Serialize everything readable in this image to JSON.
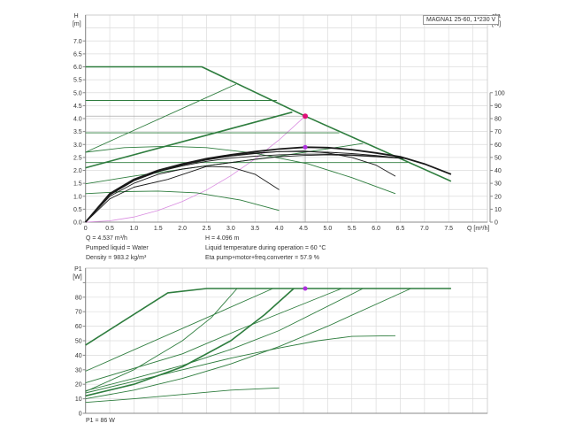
{
  "colors": {
    "pump": "#2e7d3e",
    "eta": "#1a1a1a",
    "system": "#d98be0",
    "op_point": "#e0107a",
    "eta_point": "#b030e0",
    "grid": "#dcdcdc",
    "axis": "#888888"
  },
  "legend": "MAGNA1 25-60, 1*230 V",
  "info": {
    "q": "Q = 4.537 m³/h",
    "liquid": "Pumped liquid = Water",
    "density": "Density = 983.2 kg/m³",
    "h": "H = 4.096 m",
    "temp": "Liquid temperature during operation = 60 °C",
    "eta": "Eta pump+motor+freq.converter = 57.9 %",
    "p1": "P1 = 86 W"
  },
  "chart_data": [
    {
      "type": "line",
      "title": "",
      "xlabel": "Q [m³/h]",
      "ylabel_top": "H",
      "ylabel_unit": "[m]",
      "y2label_top": "eta",
      "y2label_unit": "[%]",
      "xlim": [
        0,
        8.3
      ],
      "ylim": [
        0,
        8
      ],
      "y2lim": [
        0,
        100
      ],
      "y2_axis_span_h": [
        0,
        5
      ],
      "x_ticks": [
        "0",
        "0.5",
        "1.0",
        "1.5",
        "2.0",
        "2.5",
        "3.0",
        "3.5",
        "4.0",
        "4.5",
        "5.0",
        "5.5",
        "6.0",
        "6.5",
        "7.0",
        "7.5"
      ],
      "y_ticks": [
        "0.0",
        "0.5",
        "1.0",
        "1.5",
        "2.0",
        "2.5",
        "3.0",
        "3.5",
        "4.0",
        "4.5",
        "5.0",
        "5.5",
        "6.0",
        "6.5",
        "7.0"
      ],
      "y2_ticks": [
        "0",
        "10",
        "20",
        "30",
        "40",
        "50",
        "60",
        "70",
        "80",
        "90",
        "100"
      ],
      "grid": true,
      "legend_position": "top-right",
      "head_curves": [
        {
          "name": "max-curve",
          "points": [
            [
              0,
              6.0
            ],
            [
              2.4,
              6.0
            ],
            [
              4.537,
              4.096
            ],
            [
              7.55,
              1.58
            ]
          ],
          "bold": true
        },
        {
          "name": "prop-pressure-1",
          "points": [
            [
              0,
              2.7
            ],
            [
              3.11,
              5.33
            ]
          ]
        },
        {
          "name": "const-pressure-1",
          "points": [
            [
              0,
              4.7
            ],
            [
              3.95,
              4.7
            ]
          ]
        },
        {
          "name": "prop-pressure-2",
          "points": [
            [
              0,
              2.1
            ],
            [
              4.27,
              4.25
            ]
          ],
          "bold": true
        },
        {
          "name": "const-pressure-2",
          "points": [
            [
              0,
              3.45
            ],
            [
              5.24,
              3.45
            ]
          ]
        },
        {
          "name": "const-curve-2",
          "points": [
            [
              0,
              2.7
            ],
            [
              0.8,
              2.88
            ],
            [
              1.7,
              2.93
            ],
            [
              2.5,
              2.88
            ],
            [
              3.5,
              2.66
            ],
            [
              4.6,
              2.25
            ],
            [
              5.5,
              1.72
            ],
            [
              6.4,
              1.1
            ]
          ]
        },
        {
          "name": "prop-pressure-3",
          "points": [
            [
              0,
              1.48
            ],
            [
              1,
              1.78
            ],
            [
              2.4,
              2.15
            ],
            [
              4,
              2.55
            ],
            [
              5.73,
              3.04
            ]
          ]
        },
        {
          "name": "const-pressure-3",
          "points": [
            [
              0,
              2.3
            ],
            [
              6.65,
              2.3
            ]
          ]
        },
        {
          "name": "const-curve-1",
          "points": [
            [
              0,
              1.1
            ],
            [
              0.8,
              1.18
            ],
            [
              1.5,
              1.2
            ],
            [
              2.3,
              1.13
            ],
            [
              3.2,
              0.85
            ],
            [
              4.0,
              0.45
            ]
          ]
        }
      ],
      "eta_curves": [
        {
          "name": "eta-max",
          "points": [
            [
              0,
              0
            ],
            [
              0.5,
              22
            ],
            [
              1,
              33
            ],
            [
              1.5,
              40
            ],
            [
              2,
              45
            ],
            [
              2.5,
              49
            ],
            [
              3,
              52
            ],
            [
              3.5,
              54.5
            ],
            [
              4,
              56.5
            ],
            [
              4.537,
              57.9
            ],
            [
              5,
              57.6
            ],
            [
              5.5,
              56
            ],
            [
              6,
              53.5
            ],
            [
              6.5,
              50.5
            ],
            [
              7,
              45
            ],
            [
              7.55,
              37
            ]
          ],
          "bold": true
        },
        {
          "name": "eta-2",
          "points": [
            [
              0,
              0
            ],
            [
              0.5,
              21
            ],
            [
              1,
              32
            ],
            [
              1.5,
              39
            ],
            [
              2,
              44
            ],
            [
              2.5,
              48
            ],
            [
              3,
              51
            ],
            [
              3.5,
              53
            ],
            [
              4,
              54.5
            ],
            [
              4.5,
              55
            ],
            [
              5,
              53.5
            ],
            [
              5.5,
              50
            ],
            [
              6,
              44
            ],
            [
              6.4,
              35.5
            ]
          ]
        },
        {
          "name": "eta-3",
          "points": [
            [
              0,
              0
            ],
            [
              0.5,
              21.5
            ],
            [
              1,
              32.5
            ],
            [
              1.5,
              39.5
            ],
            [
              2,
              44.5
            ],
            [
              2.5,
              48.5
            ],
            [
              3,
              51.5
            ],
            [
              3.5,
              53.5
            ],
            [
              4,
              54.5
            ],
            [
              4.5,
              54.5
            ],
            [
              5,
              54
            ],
            [
              5.5,
              53
            ],
            [
              6,
              51.5
            ],
            [
              6.65,
              49
            ]
          ]
        },
        {
          "name": "eta-4",
          "points": [
            [
              0,
              0
            ],
            [
              0.5,
              21
            ],
            [
              1,
              32
            ],
            [
              1.5,
              39
            ],
            [
              2,
              43.5
            ],
            [
              2.5,
              47
            ],
            [
              3,
              49.5
            ],
            [
              3.5,
              51
            ],
            [
              4,
              52
            ],
            [
              4.5,
              52.5
            ],
            [
              5,
              52.5
            ],
            [
              5.5,
              52
            ],
            [
              6,
              51
            ],
            [
              6.65,
              49
            ]
          ]
        },
        {
          "name": "eta-5",
          "points": [
            [
              0,
              0
            ],
            [
              0.5,
              20
            ],
            [
              1,
              30
            ],
            [
              1.5,
              37
            ],
            [
              2,
              41
            ],
            [
              2.5,
              43.5
            ],
            [
              3,
              46
            ],
            [
              3.5,
              48.5
            ],
            [
              4,
              50.5
            ],
            [
              4.5,
              51.5
            ],
            [
              5,
              52
            ],
            [
              5.5,
              51.5
            ],
            [
              6,
              50.5
            ],
            [
              6.65,
              49
            ]
          ]
        },
        {
          "name": "eta-6",
          "points": [
            [
              0,
              0
            ],
            [
              0.5,
              18
            ],
            [
              1,
              27
            ],
            [
              1.7,
              33
            ],
            [
              2.5,
              43
            ],
            [
              3,
              42.5
            ],
            [
              3.5,
              37
            ],
            [
              4,
              25
            ]
          ]
        }
      ],
      "system_curve": {
        "name": "system-curve",
        "points": [
          [
            0,
            0
          ],
          [
            0.5,
            0.05
          ],
          [
            1,
            0.2
          ],
          [
            1.5,
            0.45
          ],
          [
            2,
            0.8
          ],
          [
            2.5,
            1.24
          ],
          [
            3,
            1.79
          ],
          [
            3.5,
            2.44
          ],
          [
            4,
            3.18
          ],
          [
            4.537,
            4.096
          ]
        ]
      },
      "operating_point": {
        "q": 4.537,
        "h": 4.096,
        "eta": 57.9
      }
    },
    {
      "type": "line",
      "title": "",
      "ylabel_top": "P1",
      "ylabel_unit": "[W]",
      "xlim": [
        0,
        8.3
      ],
      "ylim": [
        0,
        100
      ],
      "y_ticks": [
        "0",
        "10",
        "20",
        "30",
        "40",
        "50",
        "60",
        "70",
        "80"
      ],
      "grid": true,
      "power_curves": [
        {
          "name": "p1-max",
          "points": [
            [
              0,
              47
            ],
            [
              1.7,
              83
            ],
            [
              2.5,
              86
            ],
            [
              7.55,
              86
            ]
          ],
          "bold": true
        },
        {
          "name": "p1-a",
          "points": [
            [
              0,
              15
            ],
            [
              1,
              30
            ],
            [
              2,
              50
            ],
            [
              2.6,
              66
            ],
            [
              3.13,
              86
            ]
          ]
        },
        {
          "name": "p1-b",
          "points": [
            [
              0,
              29
            ],
            [
              3.87,
              86
            ]
          ]
        },
        {
          "name": "p1-c",
          "points": [
            [
              0,
              12
            ],
            [
              1,
              20
            ],
            [
              2,
              32
            ],
            [
              3,
              50
            ],
            [
              3.7,
              68
            ],
            [
              4.3,
              86
            ]
          ],
          "bold": true
        },
        {
          "name": "p1-d",
          "points": [
            [
              0,
              21
            ],
            [
              2,
              41
            ],
            [
              3.13,
              57
            ],
            [
              5.29,
              86
            ]
          ]
        },
        {
          "name": "p1-e",
          "points": [
            [
              0,
              15.5
            ],
            [
              1,
              24
            ],
            [
              2,
              33
            ],
            [
              3,
              44
            ],
            [
              4,
              57
            ],
            [
              5.73,
              86
            ]
          ]
        },
        {
          "name": "p1-f",
          "points": [
            [
              0,
              10
            ],
            [
              1,
              16
            ],
            [
              2,
              24
            ],
            [
              3,
              34
            ],
            [
              4,
              46
            ],
            [
              5,
              60
            ],
            [
              6.72,
              86
            ]
          ]
        },
        {
          "name": "p1-g",
          "points": [
            [
              0,
              14
            ],
            [
              1,
              22
            ],
            [
              2,
              30
            ],
            [
              3,
              38
            ],
            [
              4,
              45
            ],
            [
              4.8,
              50
            ],
            [
              5.5,
              53
            ],
            [
              6.4,
              53.5
            ]
          ]
        },
        {
          "name": "p1-h",
          "points": [
            [
              0,
              7.5
            ],
            [
              1,
              10
            ],
            [
              2,
              13
            ],
            [
              3,
              16
            ],
            [
              4,
              17.5
            ]
          ]
        }
      ],
      "operating_point": {
        "q": 4.537,
        "p1": 86
      }
    }
  ]
}
